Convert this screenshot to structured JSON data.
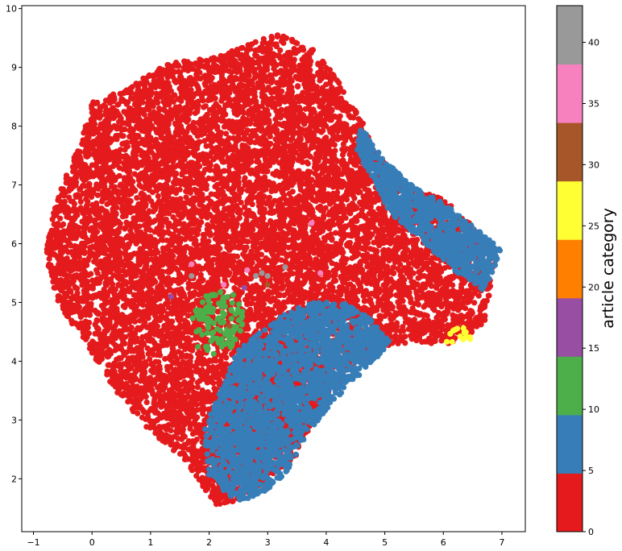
{
  "chart_data": {
    "type": "scatter",
    "title": "",
    "xlabel": "",
    "ylabel": "",
    "xlim": [
      -1.2,
      7.4
    ],
    "ylim": [
      1.1,
      10.05
    ],
    "xticks": [
      -1,
      0,
      1,
      2,
      3,
      4,
      5,
      6,
      7
    ],
    "yticks": [
      2,
      3,
      4,
      5,
      6,
      7,
      8,
      9,
      10
    ],
    "grid": false,
    "colorbar": {
      "label": "article category",
      "range": [
        0,
        43
      ],
      "ticks": [
        0,
        5,
        10,
        15,
        20,
        25,
        30,
        35,
        40
      ],
      "colors": [
        "#e41a1c",
        "#377eb8",
        "#4daf4a",
        "#984ea3",
        "#ff7f00",
        "#ffff33",
        "#a65628",
        "#f781bf",
        "#999999"
      ]
    },
    "series": [
      {
        "color": "#e41a1c",
        "regions": [
          {
            "polygon": [
              [
                -0.8,
                5.8
              ],
              [
                -0.6,
                6.8
              ],
              [
                -0.2,
                7.7
              ],
              [
                0.0,
                8.4
              ],
              [
                0.7,
                8.7
              ],
              [
                1.3,
                9.1
              ],
              [
                2.0,
                9.15
              ],
              [
                2.7,
                9.4
              ],
              [
                3.2,
                9.6
              ],
              [
                3.8,
                9.3
              ],
              [
                4.2,
                8.8
              ],
              [
                4.6,
                8.1
              ],
              [
                4.9,
                7.5
              ],
              [
                5.4,
                6.9
              ],
              [
                6.0,
                6.8
              ],
              [
                6.5,
                6.3
              ],
              [
                6.9,
                5.9
              ],
              [
                6.7,
                4.6
              ],
              [
                6.1,
                4.3
              ],
              [
                5.2,
                4.3
              ],
              [
                4.6,
                4.0
              ],
              [
                4.0,
                3.4
              ],
              [
                3.5,
                2.4
              ],
              [
                3.0,
                2.0
              ],
              [
                2.5,
                1.6
              ],
              [
                2.1,
                1.55
              ],
              [
                1.6,
                2.3
              ],
              [
                1.0,
                2.8
              ],
              [
                0.4,
                3.5
              ],
              [
                -0.1,
                4.3
              ],
              [
                -0.6,
                5.0
              ]
            ],
            "count": 11000,
            "weight": 1
          },
          {
            "polygon": [
              [
                2.2,
                3.0
              ],
              [
                2.9,
                2.4
              ],
              [
                3.4,
                2.6
              ],
              [
                3.5,
                4.2
              ],
              [
                2.8,
                4.4
              ],
              [
                2.3,
                3.8
              ]
            ],
            "count": 1200,
            "weight": 1
          }
        ]
      },
      {
        "color": "#377eb8",
        "regions": [
          {
            "polygon": [
              [
                2.0,
                2.0
              ],
              [
                2.5,
                1.6
              ],
              [
                3.0,
                1.8
              ],
              [
                3.4,
                2.2
              ],
              [
                3.7,
                2.8
              ],
              [
                4.1,
                3.3
              ],
              [
                4.6,
                3.8
              ],
              [
                5.1,
                4.3
              ],
              [
                4.8,
                4.7
              ],
              [
                4.3,
                5.0
              ],
              [
                3.7,
                5.0
              ],
              [
                3.1,
                4.7
              ],
              [
                2.5,
                4.2
              ],
              [
                2.2,
                3.5
              ],
              [
                1.9,
                2.8
              ]
            ],
            "count": 2200,
            "weight": 1
          },
          {
            "polygon": [
              [
                4.6,
                8.0
              ],
              [
                5.0,
                7.4
              ],
              [
                5.6,
                6.9
              ],
              [
                6.0,
                6.7
              ],
              [
                6.5,
                6.3
              ],
              [
                7.0,
                5.9
              ],
              [
                6.7,
                5.2
              ],
              [
                6.1,
                5.6
              ],
              [
                5.6,
                6.1
              ],
              [
                5.1,
                6.5
              ],
              [
                4.8,
                7.1
              ],
              [
                4.5,
                7.6
              ]
            ],
            "count": 900,
            "weight": 1
          }
        ]
      },
      {
        "color": "#4daf4a",
        "regions": [
          {
            "polygon": [
              [
                1.8,
                4.2
              ],
              [
                2.1,
                4.1
              ],
              [
                2.5,
                4.3
              ],
              [
                2.6,
                4.8
              ],
              [
                2.4,
                5.2
              ],
              [
                2.0,
                5.2
              ],
              [
                1.7,
                4.8
              ]
            ],
            "count": 110,
            "weight": 1
          }
        ]
      },
      {
        "color": "#ffff33",
        "regions": [
          {
            "polygon": [
              [
                6.05,
                4.3
              ],
              [
                6.5,
                4.3
              ],
              [
                6.5,
                4.6
              ],
              [
                6.05,
                4.55
              ]
            ],
            "count": 14,
            "weight": 1
          }
        ]
      },
      {
        "color": "#999999",
        "points": [
          [
            1.7,
            5.45
          ],
          [
            2.8,
            5.45
          ],
          [
            2.9,
            5.5
          ],
          [
            3.0,
            5.45
          ],
          [
            3.3,
            5.6
          ]
        ]
      },
      {
        "color": "#f781bf",
        "points": [
          [
            1.7,
            5.65
          ],
          [
            2.65,
            5.55
          ],
          [
            3.75,
            6.35
          ],
          [
            3.9,
            5.5
          ],
          [
            2.25,
            5.3
          ]
        ]
      },
      {
        "color": "#984ea3",
        "points": [
          [
            1.35,
            5.1
          ],
          [
            2.6,
            5.25
          ]
        ]
      },
      {
        "color": "#a65628",
        "points": [
          [
            2.35,
            4.6
          ],
          [
            3.0,
            5.3
          ]
        ]
      }
    ]
  }
}
